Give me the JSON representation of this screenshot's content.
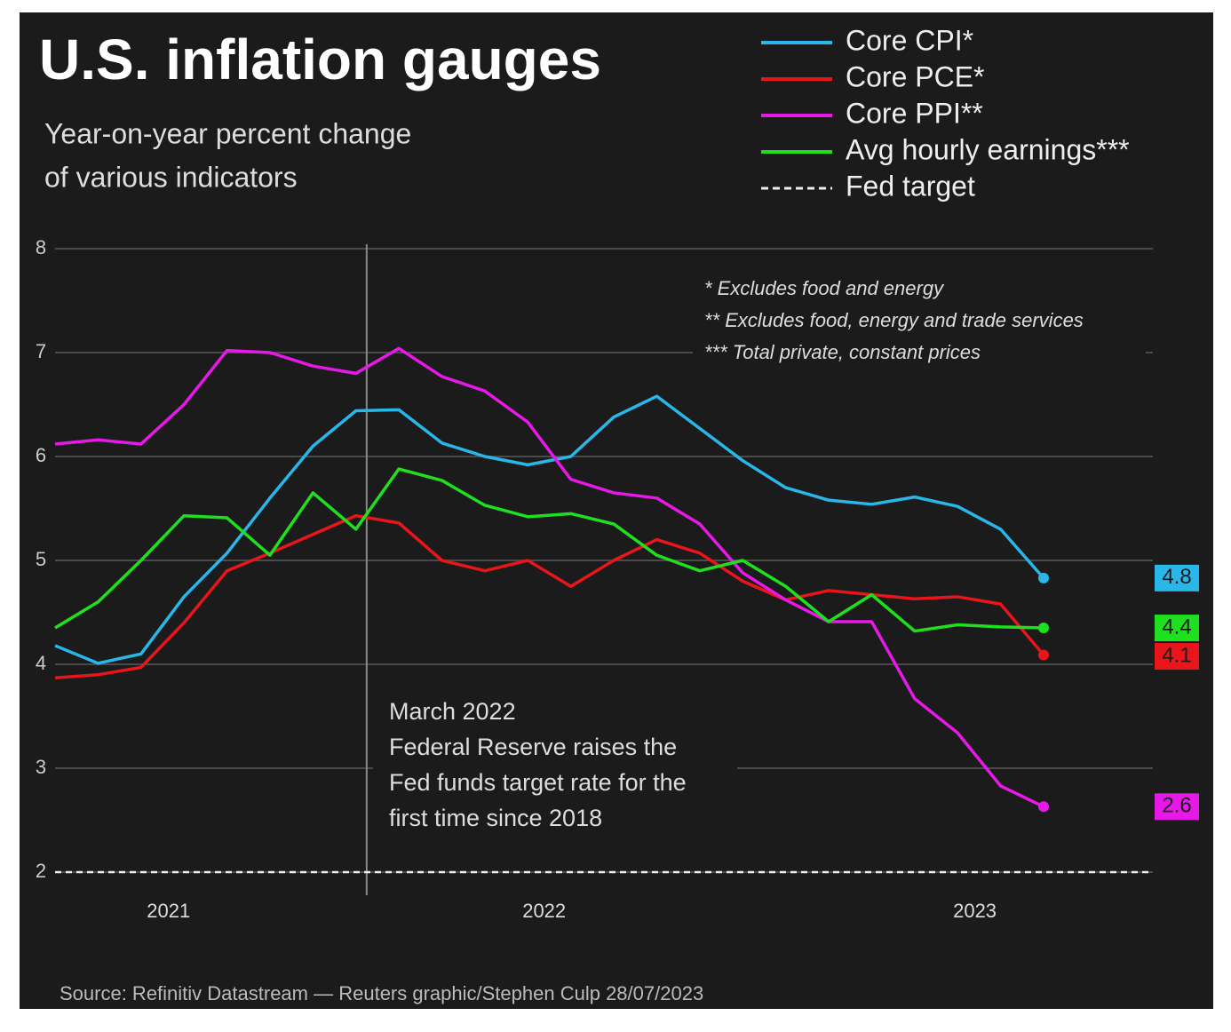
{
  "chart_data": {
    "type": "line",
    "title": "U.S. inflation gauges",
    "subtitle": [
      "Year-on-year percent change",
      "of various indicators"
    ],
    "categories": [
      null,
      null,
      null,
      null,
      null,
      null,
      null,
      null,
      null,
      null,
      null,
      null,
      null,
      null,
      null,
      null,
      null,
      null,
      null,
      null,
      null,
      null,
      null,
      null
    ],
    "xlim": [
      0,
      23
    ],
    "xticks": [
      {
        "value": 2.64,
        "label": "2021"
      },
      {
        "value": 11.38,
        "label": "2022"
      },
      {
        "value": 21.4,
        "label": "2023"
      }
    ],
    "ylim": [
      2,
      8
    ],
    "yticks": [
      2,
      3,
      4,
      5,
      6,
      7,
      8
    ],
    "grid": true,
    "series": [
      {
        "name": "Core CPI*",
        "color": "#29b6e8",
        "values": [
          4.18,
          4.01,
          4.1,
          4.65,
          5.07,
          5.6,
          6.1,
          6.44,
          6.45,
          6.13,
          6.0,
          5.92,
          6.0,
          6.38,
          6.58,
          6.27,
          5.96,
          5.7,
          5.58,
          5.54,
          5.61,
          5.52,
          5.3,
          4.83
        ],
        "value_labels": [
          null,
          null,
          null,
          null,
          null,
          null,
          null,
          null,
          null,
          null,
          null,
          null,
          null,
          null,
          null,
          null,
          null,
          null,
          null,
          null,
          null,
          null,
          null,
          "4.8"
        ]
      },
      {
        "name": "Core PCE*",
        "color": "#e8151b",
        "values": [
          3.87,
          3.9,
          3.97,
          4.4,
          4.9,
          5.07,
          5.25,
          5.43,
          5.36,
          5.0,
          4.9,
          5.0,
          4.75,
          5.0,
          5.2,
          5.07,
          4.8,
          4.62,
          4.71,
          4.67,
          4.63,
          4.65,
          4.58,
          4.09
        ],
        "value_labels": [
          null,
          null,
          null,
          null,
          null,
          null,
          null,
          null,
          null,
          null,
          null,
          null,
          null,
          null,
          null,
          null,
          null,
          null,
          null,
          null,
          null,
          null,
          null,
          "4.1"
        ]
      },
      {
        "name": "Core PPI**",
        "color": "#e619e6",
        "values": [
          6.12,
          6.16,
          6.12,
          6.5,
          7.02,
          7.0,
          6.87,
          6.8,
          7.04,
          6.77,
          6.63,
          6.33,
          5.78,
          5.65,
          5.6,
          5.35,
          4.88,
          4.62,
          4.41,
          4.41,
          3.67,
          3.34,
          2.83,
          2.63
        ],
        "value_labels": [
          null,
          null,
          null,
          null,
          null,
          null,
          null,
          null,
          null,
          null,
          null,
          null,
          null,
          null,
          null,
          null,
          null,
          null,
          null,
          null,
          null,
          null,
          null,
          "2.6"
        ]
      },
      {
        "name": "Avg hourly earnings***",
        "color": "#1fe01f",
        "values": [
          4.35,
          4.6,
          5.0,
          5.43,
          5.41,
          5.05,
          5.65,
          5.3,
          5.88,
          5.77,
          5.53,
          5.42,
          5.45,
          5.35,
          5.05,
          4.9,
          5.0,
          4.75,
          4.41,
          4.67,
          4.32,
          4.38,
          4.36,
          4.35
        ],
        "value_labels": [
          null,
          null,
          null,
          null,
          null,
          null,
          null,
          null,
          null,
          null,
          null,
          null,
          null,
          null,
          null,
          null,
          null,
          null,
          null,
          null,
          null,
          null,
          null,
          "4.4"
        ]
      }
    ],
    "fed_target": {
      "name": "Fed target",
      "value": 2
    },
    "event_x": 7.25,
    "annotation": [
      "March 2022",
      "Federal Reserve raises the",
      "Fed funds target rate for the",
      "first time since 2018"
    ],
    "notes": [
      "* Excludes food and energy",
      "** Excludes food, energy and trade services",
      "*** Total private, constant prices"
    ],
    "source": "Source: Refinitiv Datastream — Reuters graphic/Stephen Culp 28/07/2023"
  }
}
